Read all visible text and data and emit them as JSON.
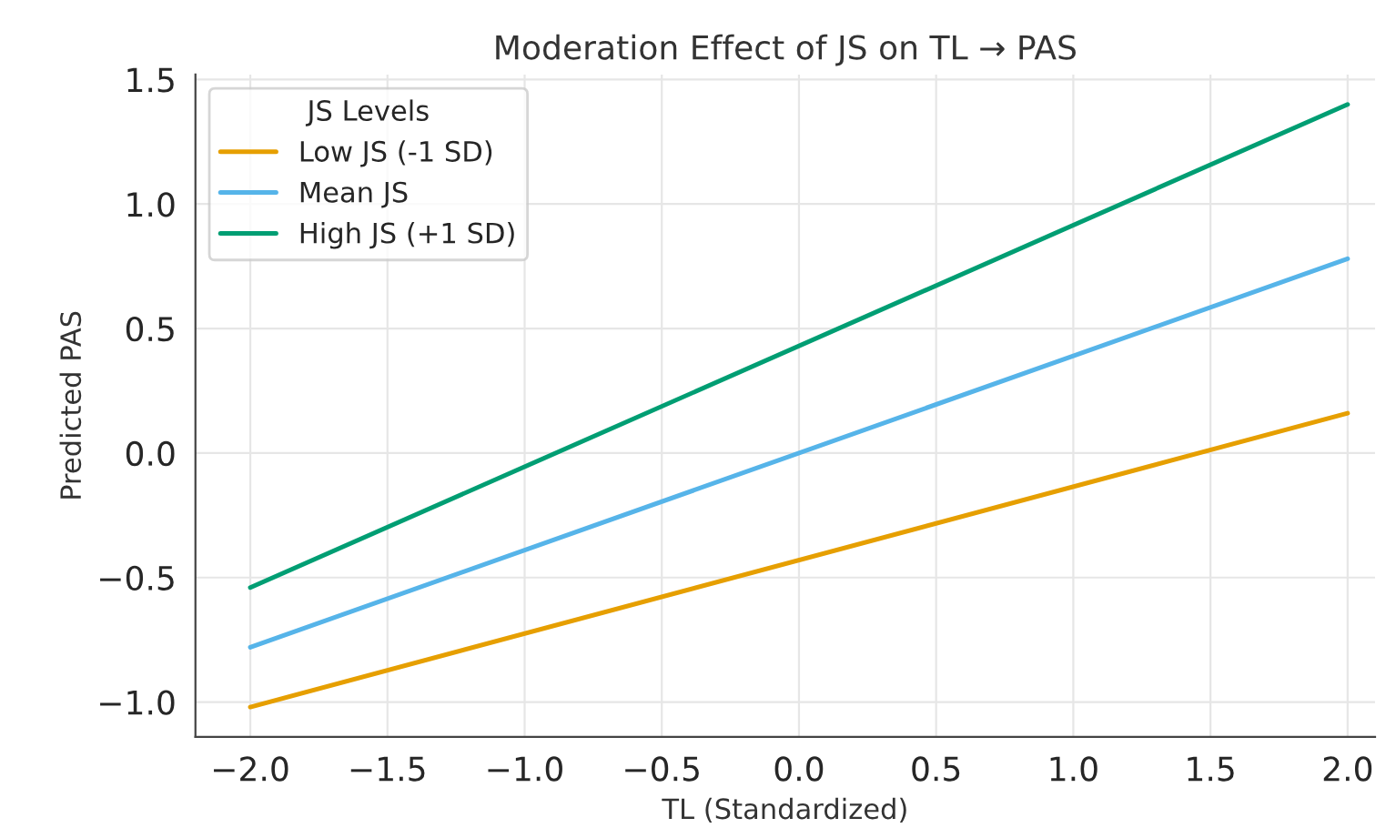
{
  "chart_data": {
    "type": "line",
    "title": "Moderation Effect of JS on TL → PAS",
    "xlabel": "TL (Standardized)",
    "ylabel": "Predicted PAS",
    "legend_title": "JS Levels",
    "x": [
      -2.0,
      2.0
    ],
    "series": [
      {
        "name": "Low JS (-1 SD)",
        "color": "#e69f00",
        "values": [
          -1.02,
          0.16
        ]
      },
      {
        "name": "Mean JS",
        "color": "#56b4e9",
        "values": [
          -0.78,
          0.78
        ]
      },
      {
        "name": "High JS (+1 SD)",
        "color": "#009e73",
        "values": [
          -0.54,
          1.4
        ]
      }
    ],
    "xlim": [
      -2.2,
      2.1
    ],
    "ylim": [
      -1.14,
      1.52
    ],
    "xticks": [
      {
        "value": -2.0,
        "label": "−2.0"
      },
      {
        "value": -1.5,
        "label": "−1.5"
      },
      {
        "value": -1.0,
        "label": "−1.0"
      },
      {
        "value": -0.5,
        "label": "−0.5"
      },
      {
        "value": 0.0,
        "label": "0.0"
      },
      {
        "value": 0.5,
        "label": "0.5"
      },
      {
        "value": 1.0,
        "label": "1.0"
      },
      {
        "value": 1.5,
        "label": "1.5"
      },
      {
        "value": 2.0,
        "label": "2.0"
      }
    ],
    "yticks": [
      {
        "value": -1.0,
        "label": "−1.0"
      },
      {
        "value": -0.5,
        "label": "−0.5"
      },
      {
        "value": 0.0,
        "label": "0.0"
      },
      {
        "value": 0.5,
        "label": "0.5"
      },
      {
        "value": 1.0,
        "label": "1.0"
      },
      {
        "value": 1.5,
        "label": "1.5"
      }
    ],
    "grid": true,
    "legend": "top left",
    "line_style": "solid"
  }
}
